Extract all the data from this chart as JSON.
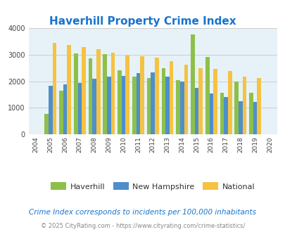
{
  "title": "Haverhill Property Crime Index",
  "title_color": "#1874cd",
  "years": [
    2004,
    2005,
    2006,
    2007,
    2008,
    2009,
    2010,
    2011,
    2012,
    2013,
    2014,
    2015,
    2016,
    2017,
    2018,
    2019,
    2020
  ],
  "haverhill": [
    null,
    780,
    1650,
    3050,
    2850,
    3010,
    2400,
    2180,
    2120,
    2490,
    2040,
    3760,
    2910,
    1560,
    1980,
    1560,
    null
  ],
  "new_hampshire": [
    null,
    1830,
    1890,
    1930,
    2080,
    2160,
    2200,
    2290,
    2330,
    2180,
    1990,
    1760,
    1530,
    1400,
    1250,
    1220,
    null
  ],
  "national": [
    null,
    3430,
    3360,
    3280,
    3210,
    3060,
    2960,
    2940,
    2890,
    2750,
    2610,
    2490,
    2450,
    2380,
    2180,
    2110,
    null
  ],
  "haverhill_color": "#8dc04a",
  "new_hampshire_color": "#4d8fcc",
  "national_color": "#f5c242",
  "bg_color": "#e6f2f8",
  "ylim": [
    0,
    4000
  ],
  "yticks": [
    0,
    1000,
    2000,
    3000,
    4000
  ],
  "subtitle": "Crime Index corresponds to incidents per 100,000 inhabitants",
  "subtitle_color": "#1874cd",
  "footer": "© 2025 CityRating.com - https://www.cityrating.com/crime-statistics/",
  "footer_color": "#888888",
  "grid_color": "#cccccc"
}
